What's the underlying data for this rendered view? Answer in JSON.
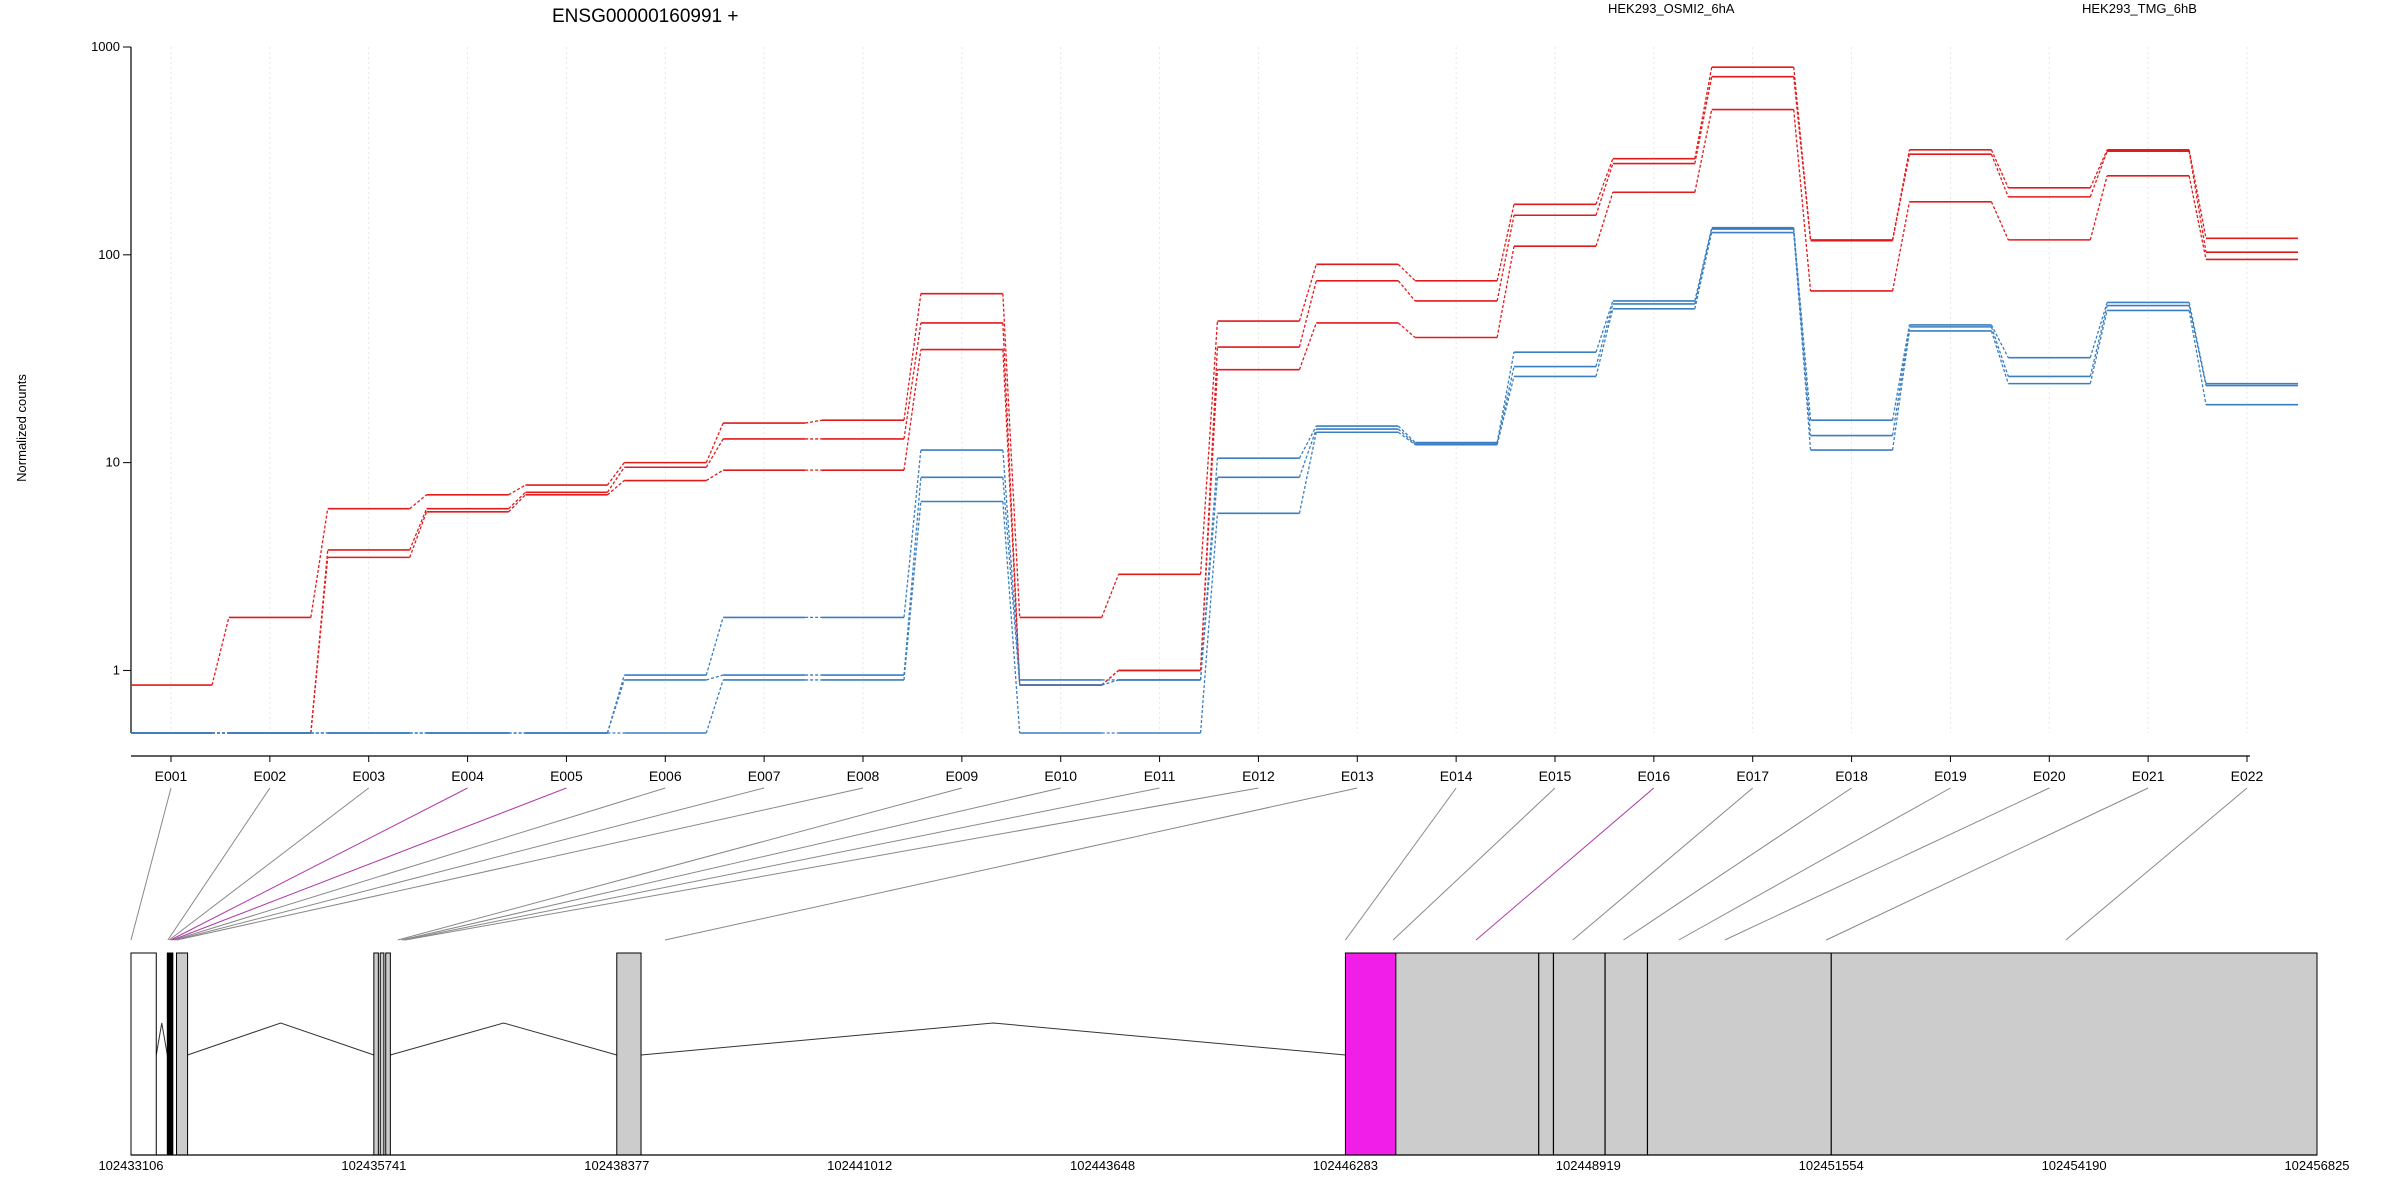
{
  "chart_data": {
    "type": "line",
    "title": "ENSG00000160991 +",
    "ylabel": "Normalized counts",
    "y_scale": "log",
    "ylim": [
      0.5,
      1000
    ],
    "yticks": [
      1,
      10,
      100,
      1000
    ],
    "yticklabels": [
      "1",
      "10",
      "100",
      "1000"
    ],
    "grid": "vertical dotted lines at each exon",
    "legend": [
      "HEK293_OSMI2_6hA",
      "HEK293_TMG_6hB"
    ],
    "categories": [
      "E001",
      "E002",
      "E003",
      "E004",
      "E005",
      "E006",
      "E007",
      "E008",
      "E009",
      "E010",
      "E011",
      "E012",
      "E013",
      "E014",
      "E015",
      "E016",
      "E017",
      "E018",
      "E019",
      "E020",
      "E021",
      "E022"
    ],
    "series": [
      {
        "name": "HEK293_OSMI2_6hA",
        "color": "#e31a1c",
        "values": [
          0.85,
          1.8,
          6.0,
          7.0,
          7.8,
          10.0,
          15.5,
          16.0,
          65,
          1.8,
          2.9,
          48,
          90,
          75,
          175,
          290,
          800,
          118,
          320,
          210,
          320,
          120
        ]
      },
      {
        "name": "HEK293_OSMI2_6hA",
        "color": "#e31a1c",
        "values": [
          0.5,
          0.5,
          3.8,
          6.0,
          7.2,
          9.5,
          13.0,
          13.0,
          47,
          0.85,
          1.0,
          36,
          75,
          60,
          155,
          275,
          720,
          117,
          305,
          190,
          315,
          103
        ]
      },
      {
        "name": "HEK293_OSMI2_6hA",
        "color": "#e31a1c",
        "values": [
          0.5,
          0.5,
          3.5,
          5.8,
          7.0,
          8.2,
          9.2,
          9.2,
          35,
          0.85,
          1.0,
          28,
          47,
          40,
          110,
          200,
          500,
          67,
          180,
          118,
          240,
          95
        ]
      },
      {
        "name": "HEK293_TMG_6hB",
        "color": "#3a7fc1",
        "values": [
          0.5,
          0.5,
          0.5,
          0.5,
          0.5,
          0.95,
          1.8,
          1.8,
          11.5,
          0.9,
          0.9,
          10.5,
          15.0,
          12.5,
          34,
          60,
          135,
          16,
          46,
          32,
          59,
          24
        ]
      },
      {
        "name": "HEK293_TMG_6hB",
        "color": "#3a7fc1",
        "values": [
          0.5,
          0.5,
          0.5,
          0.5,
          0.5,
          0.9,
          0.95,
          0.95,
          8.5,
          0.85,
          0.9,
          8.5,
          14.5,
          12.3,
          29,
          58,
          133,
          13.5,
          45,
          26,
          57,
          23.5
        ]
      },
      {
        "name": "HEK293_TMG_6hB",
        "color": "#3a7fc1",
        "values": [
          0.5,
          0.5,
          0.5,
          0.5,
          0.5,
          0.5,
          0.9,
          0.9,
          6.5,
          0.5,
          0.5,
          5.7,
          14.0,
          12.2,
          26,
          55,
          128,
          11.5,
          43,
          24,
          54,
          19
        ]
      }
    ],
    "gene_model": {
      "coordinates": [
        "102433106",
        "102435741",
        "102438377",
        "102441012",
        "102443648",
        "102446283",
        "102448919",
        "102451554",
        "102454190",
        "102456825"
      ],
      "coord_range": [
        102433106,
        102456825
      ],
      "exon_start_position": [
        102433106,
        102433506,
        102433520,
        102433536,
        102433556,
        102433572,
        102433588,
        102433604,
        102436000,
        102436040,
        102436060,
        102436080,
        102438900,
        102446283,
        102446800,
        102447700,
        102448750,
        102449300,
        102449900,
        102450400,
        102451500,
        102454100
      ],
      "exon_connector_highlight": [
        "E004",
        "E005",
        "E016"
      ],
      "exons": [
        {
          "start": 102433106,
          "end": 102433380,
          "fill": "#ffffff"
        },
        {
          "start": 102433500,
          "end": 102433560,
          "fill": "#000000"
        },
        {
          "start": 102433600,
          "end": 102433720,
          "fill": "#cccccc"
        },
        {
          "start": 102435741,
          "end": 102435790,
          "fill": "#cccccc"
        },
        {
          "start": 102435810,
          "end": 102435850,
          "fill": "#cccccc"
        },
        {
          "start": 102435870,
          "end": 102435920,
          "fill": "#cccccc"
        },
        {
          "start": 102438377,
          "end": 102438640,
          "fill": "#cccccc"
        },
        {
          "start": 102446283,
          "end": 102446830,
          "fill": "#f01ee8",
          "highlight": true
        },
        {
          "start": 102446830,
          "end": 102456825,
          "fill": "#cccccc"
        }
      ],
      "exon_dividers": [
        102448380,
        102448540,
        102449100,
        102449560,
        102451554
      ],
      "introns": [
        {
          "from": 102433380,
          "to": 102433500
        },
        {
          "from": 102433720,
          "to": 102435741
        },
        {
          "from": 102435920,
          "to": 102438377
        },
        {
          "from": 102438640,
          "to": 102446283
        }
      ]
    }
  }
}
